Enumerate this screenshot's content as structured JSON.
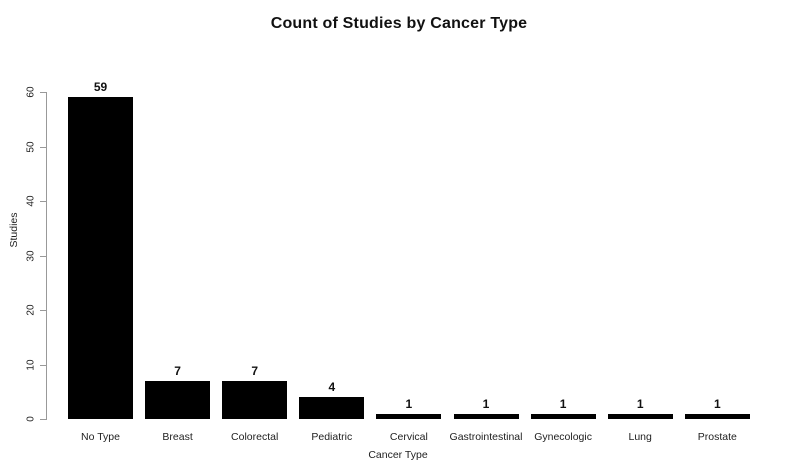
{
  "figure": {
    "background": "#ffffff"
  },
  "chart_data": {
    "type": "bar",
    "title": "Count of Studies by Cancer Type",
    "xlabel": "Cancer Type",
    "ylabel": "Studies",
    "categories": [
      "No Type",
      "Breast",
      "Colorectal",
      "Pediatric",
      "Cervical",
      "Gastrointestinal",
      "Gynecologic",
      "Lung",
      "Prostate"
    ],
    "values": [
      59,
      7,
      7,
      4,
      1,
      1,
      1,
      1,
      1
    ],
    "bar_value_labels": [
      "59",
      "7",
      "7",
      "4",
      "1",
      "1",
      "1",
      "1",
      "1"
    ],
    "yticks": [
      0,
      10,
      20,
      30,
      40,
      50,
      60
    ],
    "ylim": [
      0,
      60
    ],
    "grid": false,
    "legend_position": "none",
    "bar_color": "#000000",
    "axis_color": "#999999",
    "text_color": "#222222",
    "title_color": "#111111"
  }
}
